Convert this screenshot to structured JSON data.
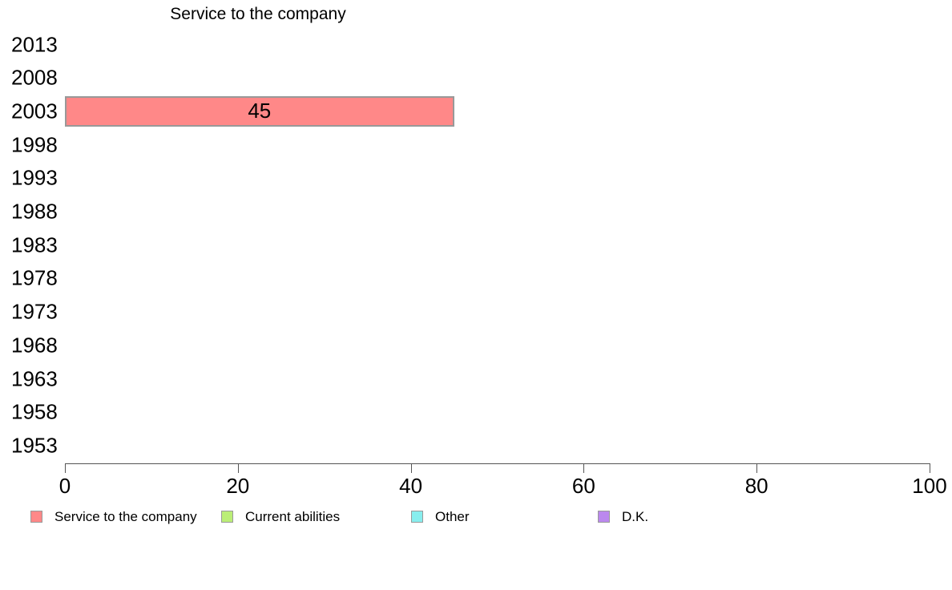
{
  "chart_data": {
    "type": "bar",
    "orientation": "horizontal",
    "title": "Service to the company",
    "categories": [
      "2013",
      "2008",
      "2003",
      "1998",
      "1993",
      "1988",
      "1983",
      "1978",
      "1973",
      "1968",
      "1963",
      "1958",
      "1953"
    ],
    "series": [
      {
        "name": "Service to the company",
        "color": "#FF8888",
        "values": [
          null,
          null,
          45,
          null,
          null,
          null,
          null,
          null,
          null,
          null,
          null,
          null,
          null
        ]
      },
      {
        "name": "Current abilities",
        "color": "#BBEE77",
        "values": [
          null,
          null,
          null,
          null,
          null,
          null,
          null,
          null,
          null,
          null,
          null,
          null,
          null
        ]
      },
      {
        "name": "Other",
        "color": "#88EEEE",
        "values": [
          null,
          null,
          null,
          null,
          null,
          null,
          null,
          null,
          null,
          null,
          null,
          null,
          null
        ]
      },
      {
        "name": "D.K.",
        "color": "#BB88EE",
        "values": [
          null,
          null,
          null,
          null,
          null,
          null,
          null,
          null,
          null,
          null,
          null,
          null,
          null
        ]
      }
    ],
    "xlim": [
      0,
      100
    ],
    "x_ticks": [
      "0",
      "20",
      "40",
      "60",
      "80",
      "100"
    ],
    "bar_value_labels": true,
    "grid": "off",
    "legend_position": "bottom",
    "legend_entries": [
      "Service to the company",
      "Current abilities",
      "Other",
      "D.K."
    ],
    "colors": {
      "bar_border": "#999999",
      "axis": "#555555",
      "text": "#000000",
      "background": "#FFFFFF"
    }
  }
}
